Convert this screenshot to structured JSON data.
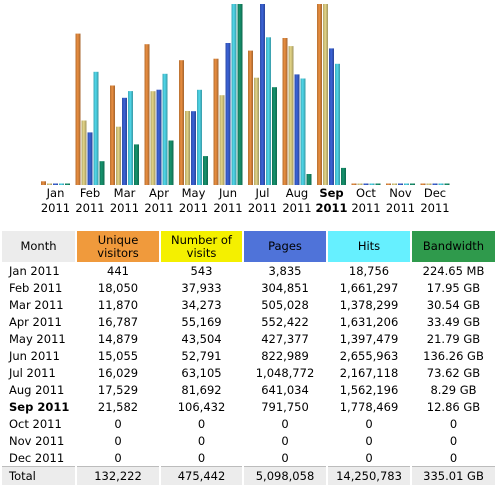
{
  "chart_data": {
    "type": "bar",
    "categories": [
      {
        "month": "Jan",
        "year": "2011"
      },
      {
        "month": "Feb",
        "year": "2011"
      },
      {
        "month": "Mar",
        "year": "2011"
      },
      {
        "month": "Apr",
        "year": "2011"
      },
      {
        "month": "May",
        "year": "2011"
      },
      {
        "month": "Jun",
        "year": "2011"
      },
      {
        "month": "Jul",
        "year": "2011"
      },
      {
        "month": "Aug",
        "year": "2011"
      },
      {
        "month": "Sep",
        "year": "2011",
        "current": true
      },
      {
        "month": "Oct",
        "year": "2011"
      },
      {
        "month": "Nov",
        "year": "2011"
      },
      {
        "month": "Dec",
        "year": "2011"
      }
    ],
    "series": [
      {
        "name": "Unique visitors",
        "color": "#e98e40",
        "values": [
          441,
          18050,
          11870,
          16787,
          14879,
          15055,
          16029,
          17529,
          21582,
          0,
          0,
          0
        ]
      },
      {
        "name": "Number of visits",
        "color": "#e3d486",
        "values": [
          543,
          37933,
          34273,
          55169,
          43504,
          52791,
          63105,
          81692,
          106432,
          0,
          0,
          0
        ]
      },
      {
        "name": "Pages",
        "color": "#3b63d8",
        "values": [
          3835,
          304851,
          505028,
          552422,
          427377,
          822989,
          1048772,
          641034,
          791750,
          0,
          0,
          0
        ]
      },
      {
        "name": "Hits",
        "color": "#4fd8ea",
        "values": [
          18756,
          1661297,
          1378299,
          1631206,
          1397479,
          2655963,
          2167118,
          1562196,
          1778469,
          0,
          0,
          0
        ]
      },
      {
        "name": "Bandwidth",
        "color": "#16946e",
        "values": [
          224.65,
          17950,
          30540,
          33490,
          21790,
          136260,
          73620,
          8290,
          12860,
          0,
          0,
          0
        ]
      }
    ]
  },
  "table": {
    "headers": {
      "month": "Month",
      "unique": [
        "Unique",
        "visitors"
      ],
      "visits": [
        "Number of",
        "visits"
      ],
      "pages": "Pages",
      "hits": "Hits",
      "bandwidth": "Bandwidth"
    },
    "header_colors": {
      "unique": "#f09a3c",
      "visits": "#f4f000",
      "pages": "#4f73d9",
      "hits": "#66f0ff",
      "bandwidth": "#2f9a4c"
    },
    "rows": [
      {
        "month": "Jan 2011",
        "unique": "441",
        "visits": "543",
        "pages": "3,835",
        "hits": "18,756",
        "bandwidth": "224.65 MB"
      },
      {
        "month": "Feb 2011",
        "unique": "18,050",
        "visits": "37,933",
        "pages": "304,851",
        "hits": "1,661,297",
        "bandwidth": "17.95 GB"
      },
      {
        "month": "Mar 2011",
        "unique": "11,870",
        "visits": "34,273",
        "pages": "505,028",
        "hits": "1,378,299",
        "bandwidth": "30.54 GB"
      },
      {
        "month": "Apr 2011",
        "unique": "16,787",
        "visits": "55,169",
        "pages": "552,422",
        "hits": "1,631,206",
        "bandwidth": "33.49 GB"
      },
      {
        "month": "May 2011",
        "unique": "14,879",
        "visits": "43,504",
        "pages": "427,377",
        "hits": "1,397,479",
        "bandwidth": "21.79 GB"
      },
      {
        "month": "Jun 2011",
        "unique": "15,055",
        "visits": "52,791",
        "pages": "822,989",
        "hits": "2,655,963",
        "bandwidth": "136.26 GB"
      },
      {
        "month": "Jul 2011",
        "unique": "16,029",
        "visits": "63,105",
        "pages": "1,048,772",
        "hits": "2,167,118",
        "bandwidth": "73.62 GB"
      },
      {
        "month": "Aug 2011",
        "unique": "17,529",
        "visits": "81,692",
        "pages": "641,034",
        "hits": "1,562,196",
        "bandwidth": "8.29 GB"
      },
      {
        "month": "Sep 2011",
        "unique": "21,582",
        "visits": "106,432",
        "pages": "791,750",
        "hits": "1,778,469",
        "bandwidth": "12.86 GB",
        "current": true
      },
      {
        "month": "Oct 2011",
        "unique": "0",
        "visits": "0",
        "pages": "0",
        "hits": "0",
        "bandwidth": "0"
      },
      {
        "month": "Nov 2011",
        "unique": "0",
        "visits": "0",
        "pages": "0",
        "hits": "0",
        "bandwidth": "0"
      },
      {
        "month": "Dec 2011",
        "unique": "0",
        "visits": "0",
        "pages": "0",
        "hits": "0",
        "bandwidth": "0"
      }
    ],
    "total": {
      "month": "Total",
      "unique": "132,222",
      "visits": "475,442",
      "pages": "5,098,058",
      "hits": "14,250,783",
      "bandwidth": "335.01 GB"
    }
  }
}
